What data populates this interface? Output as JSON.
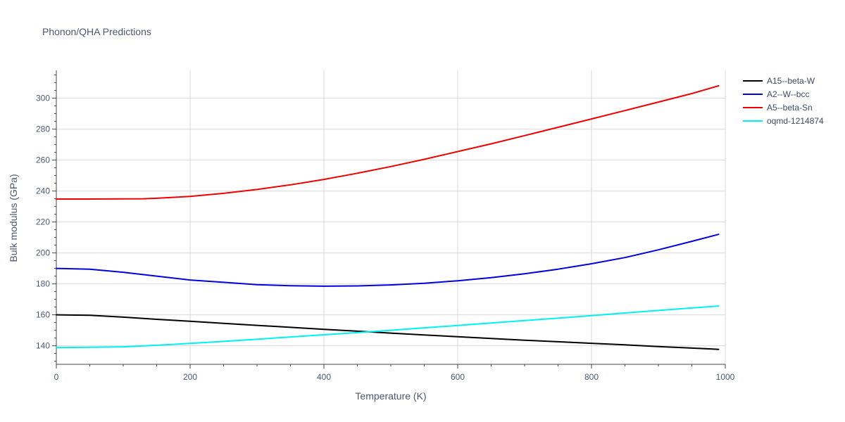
{
  "chart_data": {
    "type": "line",
    "title": "Phonon/QHA Predictions",
    "xlabel": "Temperature (K)",
    "ylabel": "Bulk modulus (GPa)",
    "xlim": [
      0,
      1000
    ],
    "ylim": [
      128,
      318
    ],
    "x_ticks": [
      0,
      200,
      400,
      600,
      800,
      1000
    ],
    "y_ticks": [
      140,
      160,
      180,
      200,
      220,
      240,
      260,
      280,
      300
    ],
    "grid": true,
    "legend_position": "top-right",
    "series": [
      {
        "name": "A15--beta-W",
        "color": "#000000",
        "x": [
          0,
          50,
          100,
          150,
          200,
          250,
          300,
          350,
          400,
          450,
          500,
          550,
          600,
          650,
          700,
          750,
          800,
          850,
          900,
          950,
          990
        ],
        "y": [
          160,
          159.7,
          158.5,
          157.1,
          155.8,
          154.5,
          153.2,
          151.9,
          150.6,
          149.4,
          148.2,
          147,
          145.8,
          144.7,
          143.6,
          142.6,
          141.6,
          140.6,
          139.5,
          138.5,
          137.7
        ]
      },
      {
        "name": "A2--W--bcc",
        "color": "#0000dd",
        "x": [
          0,
          50,
          100,
          150,
          200,
          250,
          300,
          350,
          400,
          450,
          500,
          550,
          600,
          650,
          700,
          750,
          800,
          850,
          900,
          950,
          990
        ],
        "y": [
          190,
          189.5,
          187.5,
          185,
          182.5,
          181,
          179.5,
          178.8,
          178.5,
          178.7,
          179.3,
          180.4,
          182,
          184,
          186.5,
          189.5,
          193,
          197,
          202,
          207.5,
          212
        ]
      },
      {
        "name": "A5--beta-Sn",
        "color": "#ee0000",
        "x": [
          0,
          50,
          100,
          130,
          150,
          200,
          250,
          300,
          350,
          400,
          450,
          500,
          550,
          600,
          650,
          700,
          750,
          800,
          850,
          900,
          950,
          990
        ],
        "y": [
          234.8,
          234.8,
          234.9,
          235,
          235.3,
          236.5,
          238.5,
          241,
          244,
          247.5,
          251.5,
          255.8,
          260.5,
          265.5,
          270.5,
          275.8,
          281.2,
          286.6,
          292,
          297.5,
          303,
          308
        ]
      },
      {
        "name": "oqmd-1214874",
        "color": "#00f0f0",
        "x": [
          0,
          50,
          100,
          150,
          200,
          250,
          300,
          350,
          400,
          450,
          500,
          550,
          600,
          650,
          700,
          750,
          800,
          850,
          900,
          950,
          990
        ],
        "y": [
          138.8,
          139,
          139.3,
          140.3,
          141.5,
          142.8,
          144.2,
          145.7,
          147.1,
          148.5,
          150,
          151.6,
          153.1,
          154.7,
          156.3,
          157.8,
          159.5,
          161.2,
          162.8,
          164.4,
          165.7
        ]
      }
    ]
  }
}
